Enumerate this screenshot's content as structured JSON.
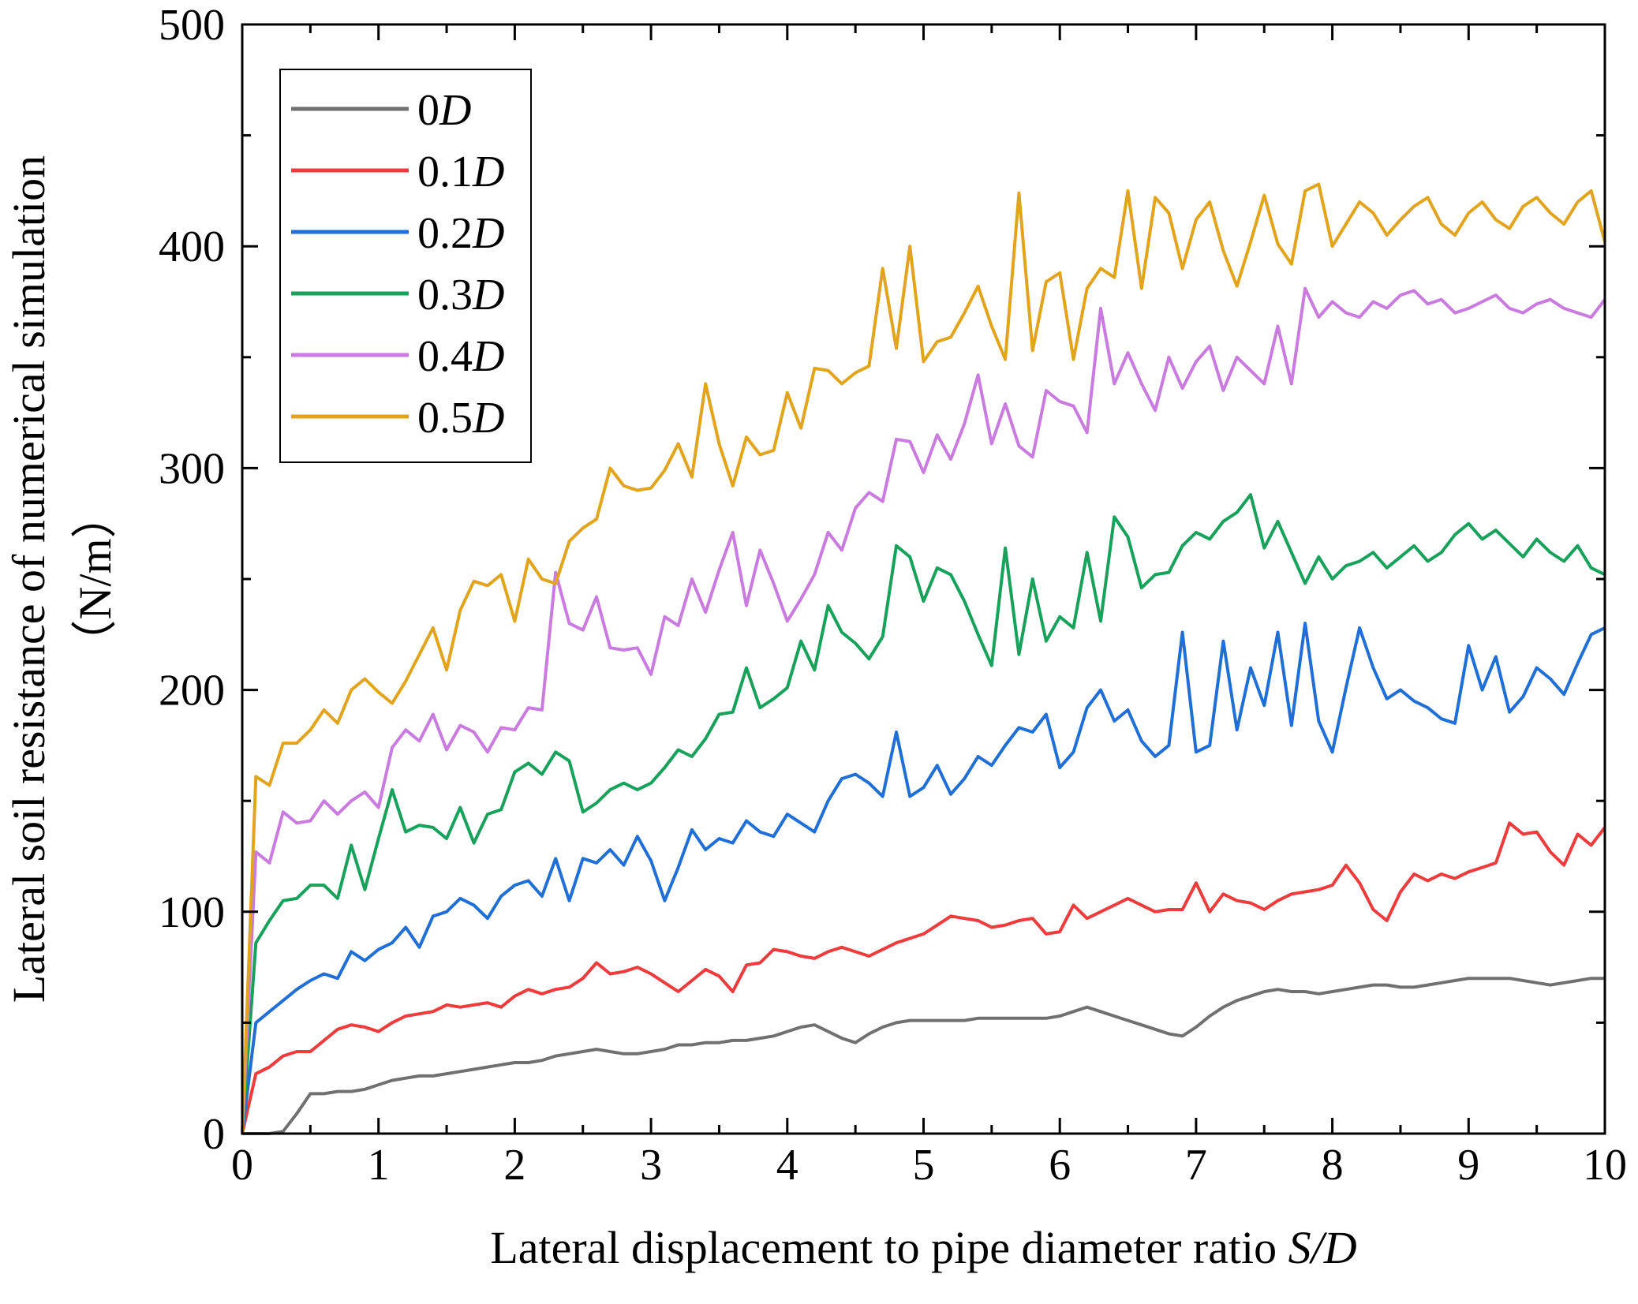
{
  "chart_data": {
    "type": "line",
    "title": "",
    "xlabel": {
      "text": "Lateral displacement to pipe diameter ratio ",
      "italic": "S/D"
    },
    "ylabel": {
      "line1": "Lateral soil resistance of numerical simulation",
      "line2": "（N/m）"
    },
    "xlim": [
      0,
      10
    ],
    "ylim": [
      0,
      500
    ],
    "xticks": [
      0,
      1,
      2,
      3,
      4,
      5,
      6,
      7,
      8,
      9,
      10
    ],
    "yticks": [
      0,
      100,
      200,
      300,
      400,
      500
    ],
    "grid": false,
    "legend_position": "top-left",
    "series": [
      {
        "name": "0D",
        "prefix": "0",
        "suffix": "D",
        "color": "#707070",
        "x": [
          0,
          0.1,
          0.2,
          0.3,
          0.4,
          0.5,
          0.6,
          0.7,
          0.8,
          0.9,
          1.0,
          1.1,
          1.2,
          1.3,
          1.4,
          1.5,
          1.6,
          1.7,
          1.8,
          1.9,
          2.0,
          2.1,
          2.2,
          2.3,
          2.4,
          2.5,
          2.6,
          2.7,
          2.8,
          2.9,
          3.0,
          3.1,
          3.2,
          3.3,
          3.4,
          3.5,
          3.6,
          3.7,
          3.8,
          3.9,
          4.0,
          4.1,
          4.2,
          4.3,
          4.4,
          4.5,
          4.6,
          4.7,
          4.8,
          4.9,
          5.0,
          5.1,
          5.2,
          5.3,
          5.4,
          5.5,
          5.6,
          5.7,
          5.8,
          5.9,
          6.0,
          6.1,
          6.2,
          6.3,
          6.4,
          6.5,
          6.6,
          6.7,
          6.8,
          6.9,
          7.0,
          7.1,
          7.2,
          7.3,
          7.4,
          7.5,
          7.6,
          7.7,
          7.8,
          7.9,
          8.0,
          8.1,
          8.2,
          8.3,
          8.4,
          8.5,
          8.6,
          8.7,
          8.8,
          8.9,
          9.0,
          9.1,
          9.2,
          9.3,
          9.4,
          9.5,
          9.6,
          9.7,
          9.8,
          9.9,
          10.0
        ],
        "y": [
          0,
          0,
          0,
          1,
          9,
          18,
          18,
          19,
          19,
          20,
          22,
          24,
          25,
          26,
          26,
          27,
          28,
          29,
          30,
          31,
          32,
          32,
          33,
          35,
          36,
          37,
          38,
          37,
          36,
          36,
          37,
          38,
          40,
          40,
          41,
          41,
          42,
          42,
          43,
          44,
          46,
          48,
          49,
          46,
          43,
          41,
          45,
          48,
          50,
          51,
          51,
          51,
          51,
          51,
          52,
          52,
          52,
          52,
          52,
          52,
          53,
          55,
          57,
          55,
          53,
          51,
          49,
          47,
          45,
          44,
          48,
          53,
          57,
          60,
          62,
          64,
          65,
          64,
          64,
          63,
          64,
          65,
          66,
          67,
          67,
          66,
          66,
          67,
          68,
          69,
          70,
          70,
          70,
          70,
          69,
          68,
          67,
          68,
          69,
          70,
          70
        ]
      },
      {
        "name": "0.1D",
        "prefix": "0.1",
        "suffix": "D",
        "color": "#ee3b3b",
        "x": [
          0,
          0.1,
          0.2,
          0.3,
          0.4,
          0.5,
          0.6,
          0.7,
          0.8,
          0.9,
          1.0,
          1.1,
          1.2,
          1.3,
          1.4,
          1.5,
          1.6,
          1.7,
          1.8,
          1.9,
          2.0,
          2.1,
          2.2,
          2.3,
          2.4,
          2.5,
          2.6,
          2.7,
          2.8,
          2.9,
          3.0,
          3.1,
          3.2,
          3.3,
          3.4,
          3.5,
          3.6,
          3.7,
          3.8,
          3.9,
          4.0,
          4.1,
          4.2,
          4.3,
          4.4,
          4.5,
          4.6,
          4.7,
          4.8,
          4.9,
          5.0,
          5.1,
          5.2,
          5.3,
          5.4,
          5.5,
          5.6,
          5.7,
          5.8,
          5.9,
          6.0,
          6.1,
          6.2,
          6.3,
          6.4,
          6.5,
          6.6,
          6.7,
          6.8,
          6.9,
          7.0,
          7.1,
          7.2,
          7.3,
          7.4,
          7.5,
          7.6,
          7.7,
          7.8,
          7.9,
          8.0,
          8.1,
          8.2,
          8.3,
          8.4,
          8.5,
          8.6,
          8.7,
          8.8,
          8.9,
          9.0,
          9.1,
          9.2,
          9.3,
          9.4,
          9.5,
          9.6,
          9.7,
          9.8,
          9.9,
          10.0
        ],
        "y": [
          0,
          27,
          30,
          35,
          37,
          37,
          42,
          47,
          49,
          48,
          46,
          50,
          53,
          54,
          55,
          58,
          57,
          58,
          59,
          57,
          62,
          65,
          63,
          65,
          66,
          70,
          77,
          72,
          73,
          75,
          72,
          68,
          64,
          69,
          74,
          71,
          64,
          76,
          77,
          83,
          82,
          80,
          79,
          82,
          84,
          82,
          80,
          83,
          86,
          88,
          90,
          94,
          98,
          97,
          96,
          93,
          94,
          96,
          97,
          90,
          91,
          103,
          97,
          100,
          103,
          106,
          103,
          100,
          101,
          101,
          113,
          100,
          108,
          105,
          104,
          101,
          105,
          108,
          109,
          110,
          112,
          121,
          113,
          101,
          96,
          109,
          117,
          114,
          117,
          115,
          118,
          120,
          122,
          140,
          135,
          136,
          127,
          121,
          135,
          130,
          138
        ]
      },
      {
        "name": "0.2D",
        "prefix": "0.2",
        "suffix": "D",
        "color": "#1f6fd6",
        "x": [
          0,
          0.1,
          0.2,
          0.3,
          0.4,
          0.5,
          0.6,
          0.7,
          0.8,
          0.9,
          1.0,
          1.1,
          1.2,
          1.3,
          1.4,
          1.5,
          1.6,
          1.7,
          1.8,
          1.9,
          2.0,
          2.1,
          2.2,
          2.3,
          2.4,
          2.5,
          2.6,
          2.7,
          2.8,
          2.9,
          3.0,
          3.1,
          3.2,
          3.3,
          3.4,
          3.5,
          3.6,
          3.7,
          3.8,
          3.9,
          4.0,
          4.1,
          4.2,
          4.3,
          4.4,
          4.5,
          4.6,
          4.7,
          4.8,
          4.9,
          5.0,
          5.1,
          5.2,
          5.3,
          5.4,
          5.5,
          5.6,
          5.7,
          5.8,
          5.9,
          6.0,
          6.1,
          6.2,
          6.3,
          6.4,
          6.5,
          6.6,
          6.7,
          6.8,
          6.9,
          7.0,
          7.1,
          7.2,
          7.3,
          7.4,
          7.5,
          7.6,
          7.7,
          7.8,
          7.9,
          8.0,
          8.1,
          8.2,
          8.3,
          8.4,
          8.5,
          8.6,
          8.7,
          8.8,
          8.9,
          9.0,
          9.1,
          9.2,
          9.3,
          9.4,
          9.5,
          9.6,
          9.7,
          9.8,
          9.9,
          10.0
        ],
        "y": [
          0,
          50,
          55,
          60,
          65,
          69,
          72,
          70,
          82,
          78,
          83,
          86,
          93,
          84,
          98,
          100,
          106,
          103,
          97,
          107,
          112,
          114,
          107,
          124,
          105,
          124,
          122,
          128,
          121,
          134,
          123,
          105,
          120,
          137,
          128,
          133,
          131,
          141,
          136,
          134,
          144,
          140,
          136,
          150,
          160,
          162,
          158,
          152,
          181,
          152,
          156,
          166,
          153,
          160,
          170,
          166,
          175,
          183,
          181,
          189,
          165,
          172,
          192,
          200,
          186,
          191,
          177,
          170,
          175,
          226,
          172,
          175,
          222,
          182,
          210,
          193,
          226,
          184,
          230,
          186,
          172,
          201,
          228,
          210,
          196,
          200,
          195,
          192,
          187,
          185,
          220,
          200,
          215,
          190,
          197,
          210,
          205,
          198,
          212,
          225,
          228
        ]
      },
      {
        "name": "0.3D",
        "prefix": "0.3",
        "suffix": "D",
        "color": "#18a15a",
        "x": [
          0,
          0.1,
          0.2,
          0.3,
          0.4,
          0.5,
          0.6,
          0.7,
          0.8,
          0.9,
          1.0,
          1.1,
          1.2,
          1.3,
          1.4,
          1.5,
          1.6,
          1.7,
          1.8,
          1.9,
          2.0,
          2.1,
          2.2,
          2.3,
          2.4,
          2.5,
          2.6,
          2.7,
          2.8,
          2.9,
          3.0,
          3.1,
          3.2,
          3.3,
          3.4,
          3.5,
          3.6,
          3.7,
          3.8,
          3.9,
          4.0,
          4.1,
          4.2,
          4.3,
          4.4,
          4.5,
          4.6,
          4.7,
          4.8,
          4.9,
          5.0,
          5.1,
          5.2,
          5.3,
          5.4,
          5.5,
          5.6,
          5.7,
          5.8,
          5.9,
          6.0,
          6.1,
          6.2,
          6.3,
          6.4,
          6.5,
          6.6,
          6.7,
          6.8,
          6.9,
          7.0,
          7.1,
          7.2,
          7.3,
          7.4,
          7.5,
          7.6,
          7.7,
          7.8,
          7.9,
          8.0,
          8.1,
          8.2,
          8.3,
          8.4,
          8.5,
          8.6,
          8.7,
          8.8,
          8.9,
          9.0,
          9.1,
          9.2,
          9.3,
          9.4,
          9.5,
          9.6,
          9.7,
          9.8,
          9.9,
          10.0
        ],
        "y": [
          0,
          86,
          96,
          105,
          106,
          112,
          112,
          106,
          130,
          110,
          133,
          155,
          136,
          139,
          138,
          133,
          147,
          131,
          144,
          146,
          163,
          167,
          162,
          172,
          168,
          145,
          149,
          155,
          158,
          155,
          158,
          165,
          173,
          170,
          178,
          189,
          190,
          210,
          192,
          196,
          201,
          222,
          209,
          238,
          226,
          221,
          214,
          224,
          265,
          260,
          240,
          255,
          252,
          240,
          225,
          211,
          264,
          216,
          250,
          222,
          233,
          228,
          262,
          231,
          278,
          269,
          246,
          252,
          253,
          265,
          271,
          268,
          276,
          280,
          288,
          264,
          276,
          262,
          248,
          260,
          250,
          256,
          258,
          262,
          255,
          260,
          265,
          258,
          262,
          270,
          275,
          268,
          272,
          266,
          260,
          268,
          262,
          258,
          265,
          255,
          252
        ]
      },
      {
        "name": "0.4D",
        "prefix": "0.4",
        "suffix": "D",
        "color": "#c97be0",
        "x": [
          0,
          0.1,
          0.2,
          0.3,
          0.4,
          0.5,
          0.6,
          0.7,
          0.8,
          0.9,
          1.0,
          1.1,
          1.2,
          1.3,
          1.4,
          1.5,
          1.6,
          1.7,
          1.8,
          1.9,
          2.0,
          2.1,
          2.2,
          2.3,
          2.4,
          2.5,
          2.6,
          2.7,
          2.8,
          2.9,
          3.0,
          3.1,
          3.2,
          3.3,
          3.4,
          3.5,
          3.6,
          3.7,
          3.8,
          3.9,
          4.0,
          4.1,
          4.2,
          4.3,
          4.4,
          4.5,
          4.6,
          4.7,
          4.8,
          4.9,
          5.0,
          5.1,
          5.2,
          5.3,
          5.4,
          5.5,
          5.6,
          5.7,
          5.8,
          5.9,
          6.0,
          6.1,
          6.2,
          6.3,
          6.4,
          6.5,
          6.6,
          6.7,
          6.8,
          6.9,
          7.0,
          7.1,
          7.2,
          7.3,
          7.4,
          7.5,
          7.6,
          7.7,
          7.8,
          7.9,
          8.0,
          8.1,
          8.2,
          8.3,
          8.4,
          8.5,
          8.6,
          8.7,
          8.8,
          8.9,
          9.0,
          9.1,
          9.2,
          9.3,
          9.4,
          9.5,
          9.6,
          9.7,
          9.8,
          9.9,
          10.0
        ],
        "y": [
          0,
          127,
          122,
          145,
          140,
          141,
          150,
          144,
          150,
          154,
          147,
          174,
          182,
          177,
          189,
          173,
          184,
          181,
          172,
          183,
          182,
          192,
          191,
          253,
          230,
          227,
          242,
          219,
          218,
          219,
          207,
          233,
          229,
          250,
          235,
          254,
          271,
          238,
          263,
          248,
          231,
          241,
          252,
          271,
          263,
          282,
          289,
          285,
          313,
          312,
          298,
          315,
          304,
          320,
          342,
          311,
          329,
          310,
          305,
          335,
          330,
          328,
          316,
          372,
          338,
          352,
          338,
          326,
          350,
          336,
          348,
          355,
          335,
          350,
          344,
          338,
          364,
          338,
          381,
          368,
          375,
          370,
          368,
          375,
          372,
          378,
          380,
          374,
          376,
          370,
          372,
          375,
          378,
          372,
          370,
          374,
          376,
          372,
          370,
          368,
          376
        ]
      },
      {
        "name": "0.5D",
        "prefix": "0.5",
        "suffix": "D",
        "color": "#e2a41c",
        "x": [
          0,
          0.1,
          0.2,
          0.3,
          0.4,
          0.5,
          0.6,
          0.7,
          0.8,
          0.9,
          1.0,
          1.1,
          1.2,
          1.3,
          1.4,
          1.5,
          1.6,
          1.7,
          1.8,
          1.9,
          2.0,
          2.1,
          2.2,
          2.3,
          2.4,
          2.5,
          2.6,
          2.7,
          2.8,
          2.9,
          3.0,
          3.1,
          3.2,
          3.3,
          3.4,
          3.5,
          3.6,
          3.7,
          3.8,
          3.9,
          4.0,
          4.1,
          4.2,
          4.3,
          4.4,
          4.5,
          4.6,
          4.7,
          4.8,
          4.9,
          5.0,
          5.1,
          5.2,
          5.3,
          5.4,
          5.5,
          5.6,
          5.7,
          5.8,
          5.9,
          6.0,
          6.1,
          6.2,
          6.3,
          6.4,
          6.5,
          6.6,
          6.7,
          6.8,
          6.9,
          7.0,
          7.1,
          7.2,
          7.3,
          7.4,
          7.5,
          7.6,
          7.7,
          7.8,
          7.9,
          8.0,
          8.1,
          8.2,
          8.3,
          8.4,
          8.5,
          8.6,
          8.7,
          8.8,
          8.9,
          9.0,
          9.1,
          9.2,
          9.3,
          9.4,
          9.5,
          9.6,
          9.7,
          9.8,
          9.9,
          10.0
        ],
        "y": [
          0,
          161,
          157,
          176,
          176,
          182,
          191,
          185,
          200,
          205,
          199,
          194,
          204,
          216,
          228,
          209,
          236,
          249,
          247,
          252,
          231,
          259,
          250,
          248,
          267,
          273,
          277,
          300,
          292,
          290,
          291,
          299,
          311,
          296,
          338,
          311,
          292,
          314,
          306,
          308,
          334,
          318,
          345,
          344,
          338,
          343,
          346,
          390,
          354,
          400,
          348,
          357,
          359,
          370,
          382,
          364,
          349,
          424,
          353,
          384,
          388,
          349,
          381,
          390,
          386,
          425,
          381,
          422,
          415,
          390,
          412,
          420,
          398,
          382,
          402,
          423,
          401,
          392,
          425,
          428,
          400,
          410,
          420,
          415,
          405,
          412,
          418,
          422,
          410,
          405,
          415,
          420,
          412,
          408,
          418,
          422,
          415,
          410,
          420,
          425,
          402
        ]
      }
    ]
  }
}
